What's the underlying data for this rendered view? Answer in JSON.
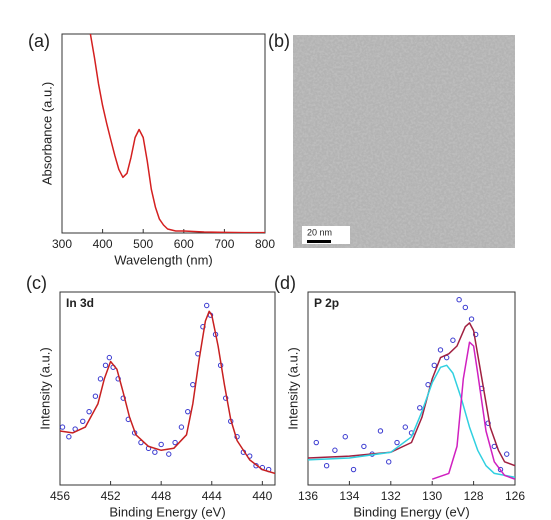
{
  "chart_data": [
    {
      "type": "line",
      "label": "(a)",
      "xlabel": "Wavelength (nm)",
      "ylabel": "Absorbance (a.u.)",
      "xlim": [
        300,
        800
      ],
      "xticks": [
        300,
        400,
        500,
        600,
        700,
        800
      ],
      "ylim": [
        0,
        1
      ],
      "series": [
        {
          "mark": "line",
          "color": "#d42020",
          "x": [
            370,
            380,
            390,
            400,
            410,
            420,
            430,
            440,
            450,
            460,
            470,
            480,
            490,
            500,
            510,
            520,
            530,
            540,
            550,
            560,
            580,
            600,
            650,
            700,
            750,
            800
          ],
          "values": [
            1.0,
            0.88,
            0.75,
            0.64,
            0.55,
            0.47,
            0.39,
            0.32,
            0.28,
            0.3,
            0.38,
            0.48,
            0.52,
            0.48,
            0.36,
            0.22,
            0.13,
            0.07,
            0.04,
            0.02,
            0.01,
            0.01,
            0.005,
            0.003,
            0.002,
            0.002
          ]
        }
      ]
    },
    {
      "type": "line",
      "label": "(c)",
      "annotation": "In 3d",
      "xlabel": "Binding Energy (eV)",
      "ylabel": "Intensity (a.u.)",
      "xlim": [
        456,
        439
      ],
      "xticks": [
        456,
        452,
        448,
        444,
        440
      ],
      "ylim": [
        0,
        1
      ],
      "series": [
        {
          "mark": "scatter",
          "color": "#3a3ad0",
          "x": [
            455.8,
            455.3,
            454.8,
            454.2,
            453.7,
            453.2,
            452.8,
            452.4,
            452.1,
            451.8,
            451.4,
            451.0,
            450.6,
            450.1,
            449.6,
            449.0,
            448.5,
            448.0,
            447.4,
            446.9,
            446.4,
            445.9,
            445.5,
            445.1,
            444.7,
            444.4,
            444.1,
            443.7,
            443.3,
            442.9,
            442.5,
            442.0,
            441.5,
            441.0,
            440.5,
            440.0,
            439.5
          ],
          "values": [
            0.3,
            0.25,
            0.29,
            0.33,
            0.38,
            0.46,
            0.55,
            0.62,
            0.66,
            0.61,
            0.55,
            0.45,
            0.34,
            0.27,
            0.22,
            0.19,
            0.17,
            0.21,
            0.16,
            0.22,
            0.3,
            0.38,
            0.52,
            0.68,
            0.82,
            0.93,
            0.88,
            0.78,
            0.62,
            0.45,
            0.33,
            0.25,
            0.17,
            0.15,
            0.1,
            0.09,
            0.08
          ]
        },
        {
          "mark": "line",
          "color": "#c82020",
          "x": [
            456,
            455,
            454,
            453,
            452.5,
            452,
            451.5,
            451,
            450.5,
            450,
            449,
            448,
            447,
            446,
            445.5,
            445,
            444.5,
            444.2,
            444,
            443.5,
            443,
            442.5,
            442,
            441,
            440,
            439
          ],
          "values": [
            0.28,
            0.27,
            0.3,
            0.42,
            0.55,
            0.64,
            0.6,
            0.48,
            0.35,
            0.26,
            0.2,
            0.18,
            0.19,
            0.26,
            0.42,
            0.65,
            0.85,
            0.9,
            0.88,
            0.72,
            0.52,
            0.34,
            0.23,
            0.13,
            0.08,
            0.06
          ]
        }
      ]
    },
    {
      "type": "line",
      "label": "(d)",
      "annotation": "P 2p",
      "xlabel": "Binding Energy (eV)",
      "ylabel": "Intensity (a.u.)",
      "xlim": [
        136,
        126
      ],
      "xticks": [
        136,
        134,
        132,
        130,
        128,
        126
      ],
      "ylim": [
        0,
        1
      ],
      "series": [
        {
          "mark": "scatter",
          "color": "#3a3ad0",
          "x": [
            135.6,
            135.1,
            134.7,
            134.2,
            133.8,
            133.3,
            132.9,
            132.5,
            132.1,
            131.7,
            131.3,
            131.0,
            130.6,
            130.2,
            129.9,
            129.6,
            129.3,
            129.0,
            128.7,
            128.4,
            128.1,
            127.9,
            127.6,
            127.3,
            127.0,
            126.7,
            126.4
          ],
          "values": [
            0.22,
            0.1,
            0.18,
            0.25,
            0.08,
            0.2,
            0.16,
            0.28,
            0.12,
            0.22,
            0.3,
            0.27,
            0.4,
            0.52,
            0.62,
            0.7,
            0.66,
            0.75,
            0.96,
            0.92,
            0.86,
            0.78,
            0.5,
            0.32,
            0.2,
            0.08,
            0.16
          ]
        },
        {
          "mark": "line",
          "color": "#a02040",
          "x": [
            136,
            134,
            132,
            131,
            130.5,
            130,
            129.6,
            129.2,
            128.8,
            128.4,
            128.2,
            128,
            127.6,
            127.2,
            126.8,
            126.5,
            126
          ],
          "values": [
            0.14,
            0.15,
            0.17,
            0.22,
            0.35,
            0.55,
            0.66,
            0.68,
            0.72,
            0.82,
            0.84,
            0.8,
            0.55,
            0.3,
            0.18,
            0.12,
            0.1
          ]
        },
        {
          "mark": "line",
          "color": "#30d0e0",
          "x": [
            136,
            134,
            132,
            131,
            130.5,
            130,
            129.6,
            129.3,
            129,
            128.6,
            128.2,
            127.8,
            127.4,
            127,
            126
          ],
          "values": [
            0.13,
            0.14,
            0.17,
            0.25,
            0.38,
            0.53,
            0.61,
            0.62,
            0.58,
            0.45,
            0.3,
            0.18,
            0.1,
            0.06,
            0.04
          ]
        },
        {
          "mark": "line",
          "color": "#d020c0",
          "x": [
            130,
            129.2,
            128.8,
            128.5,
            128.2,
            128,
            127.8,
            127.4,
            127,
            126.5,
            126
          ],
          "values": [
            0.03,
            0.06,
            0.2,
            0.55,
            0.74,
            0.72,
            0.58,
            0.28,
            0.12,
            0.05,
            0.03
          ]
        }
      ]
    }
  ],
  "image_panel": {
    "label": "(b)",
    "scale_bar": "20 nm"
  }
}
